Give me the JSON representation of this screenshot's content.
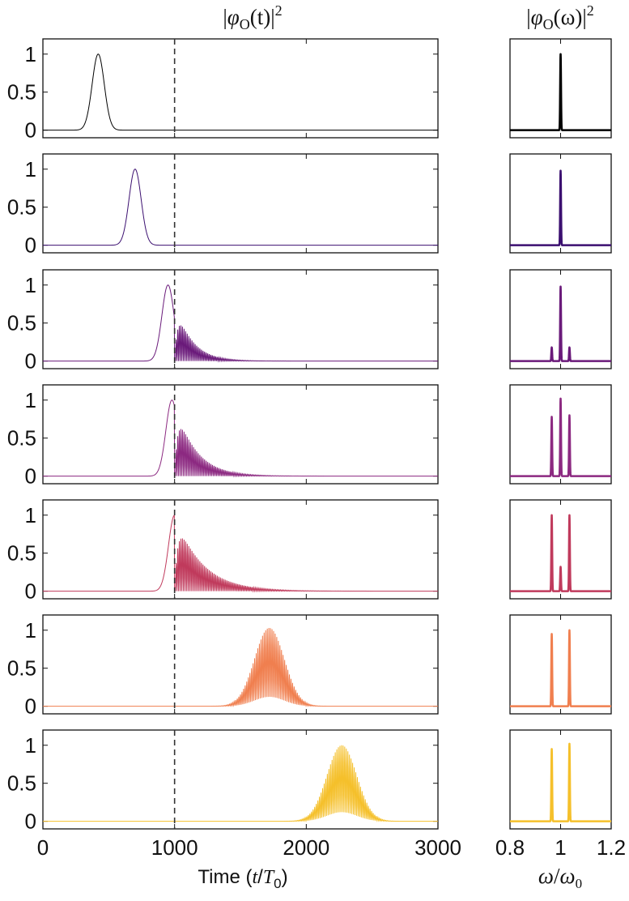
{
  "chart_data": [
    {
      "type": "line",
      "title": "|φO(t)|2",
      "title_parts": {
        "open": "|",
        "phi": "φ",
        "sub": "O",
        "arg": "(t)",
        "close": "|",
        "sup": "2"
      },
      "xlabel": "Time (t/T0)",
      "xlabel_parts": {
        "pre": "Time (",
        "var": "t",
        "slash": "/",
        "var2": "T",
        "sub": "0",
        "post": ")"
      },
      "xlim": [
        0,
        3000
      ],
      "ylim": [
        -0.1,
        1.2
      ],
      "xticks": [
        "0",
        "1000",
        "2000",
        "3000"
      ],
      "yticks": [
        "0",
        "0.5",
        "1"
      ],
      "reference_line": {
        "x": 1000,
        "style": "dashed"
      },
      "series": [
        {
          "color": "#000000",
          "center": 420,
          "width": 65,
          "peak": 1.0,
          "kind": "pulse"
        },
        {
          "color": "#3b0f70",
          "center": 700,
          "width": 65,
          "peak": 1.0,
          "kind": "pulse"
        },
        {
          "color": "#6a1a7a",
          "center": 950,
          "width": 65,
          "peak": 1.0,
          "kind": "split",
          "tail_peak": 0.82,
          "tail_decay": 120
        },
        {
          "color": "#8c2981",
          "center": 980,
          "width": 65,
          "peak": 1.0,
          "kind": "split",
          "tail_peak": 1.0,
          "tail_decay": 150
        },
        {
          "color": "#c03a5c",
          "center": 1000,
          "width": 65,
          "peak": 1.0,
          "kind": "split",
          "tail_peak": 1.03,
          "tail_decay": 200
        },
        {
          "color": "#f07f4f",
          "center": 1720,
          "width": 160,
          "peak": 1.03,
          "kind": "oscillating"
        },
        {
          "color": "#f5c02b",
          "center": 2270,
          "width": 160,
          "peak": 1.0,
          "kind": "oscillating"
        }
      ]
    },
    {
      "type": "line",
      "title": "|φO(ω)|2",
      "title_parts": {
        "open": "|",
        "phi": "φ",
        "sub": "O",
        "arg": "(ω)",
        "close": "|",
        "sup": "2"
      },
      "xlabel": "ω/ω0",
      "xlabel_parts": {
        "var": "ω",
        "slash": "/",
        "var2": "ω",
        "sub": "0"
      },
      "xlim": [
        0.8,
        1.2
      ],
      "ylim": [
        -0.1,
        1.2
      ],
      "xticks": [
        "0.8",
        "1",
        "1.2"
      ],
      "series": [
        {
          "color": "#000000",
          "peaks": [
            {
              "x": 1.0,
              "y": 1.0
            }
          ]
        },
        {
          "color": "#3b0f70",
          "peaks": [
            {
              "x": 1.0,
              "y": 0.98
            }
          ]
        },
        {
          "color": "#6a1a7a",
          "peaks": [
            {
              "x": 0.965,
              "y": 0.18
            },
            {
              "x": 1.0,
              "y": 0.98
            },
            {
              "x": 1.035,
              "y": 0.18
            }
          ]
        },
        {
          "color": "#8c2981",
          "peaks": [
            {
              "x": 0.965,
              "y": 0.78
            },
            {
              "x": 1.0,
              "y": 1.02
            },
            {
              "x": 1.035,
              "y": 0.8
            }
          ]
        },
        {
          "color": "#c03a5c",
          "peaks": [
            {
              "x": 0.965,
              "y": 1.0
            },
            {
              "x": 1.0,
              "y": 0.32
            },
            {
              "x": 1.035,
              "y": 1.0
            }
          ]
        },
        {
          "color": "#f07f4f",
          "peaks": [
            {
              "x": 0.965,
              "y": 0.95
            },
            {
              "x": 1.035,
              "y": 1.0
            }
          ]
        },
        {
          "color": "#f5c02b",
          "peaks": [
            {
              "x": 0.965,
              "y": 0.95
            },
            {
              "x": 1.035,
              "y": 1.02
            }
          ]
        }
      ]
    }
  ]
}
